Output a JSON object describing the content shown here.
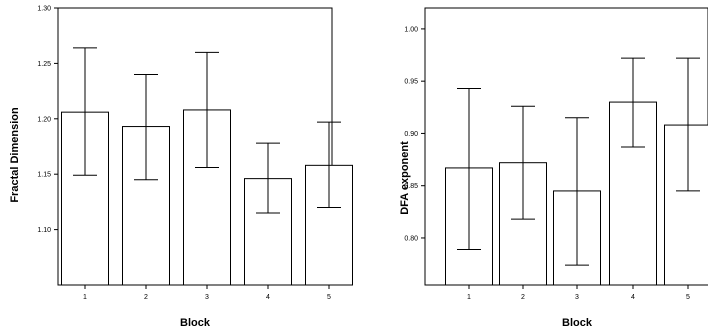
{
  "chart_data": [
    {
      "type": "bar",
      "categories": [
        "1",
        "2",
        "3",
        "4",
        "5"
      ],
      "values": [
        1.206,
        1.193,
        1.208,
        1.146,
        1.158
      ],
      "error_low": [
        1.149,
        1.145,
        1.156,
        1.115,
        1.12
      ],
      "error_high": [
        1.264,
        1.24,
        1.26,
        1.178,
        1.197
      ],
      "xlabel": "Block",
      "ylabel": "Fractal Dimension",
      "ylim": [
        1.05,
        1.3
      ],
      "yticks": [
        1.1,
        1.15,
        1.2,
        1.25,
        1.3
      ],
      "ytick_labels": [
        "1.10",
        "1.15",
        "1.20",
        "1.25",
        "1.30"
      ],
      "grid": false
    },
    {
      "type": "bar",
      "categories": [
        "1",
        "2",
        "3",
        "4",
        "5"
      ],
      "values": [
        0.867,
        0.872,
        0.845,
        0.93,
        0.908
      ],
      "error_low": [
        0.789,
        0.818,
        0.774,
        0.887,
        0.845
      ],
      "error_high": [
        0.943,
        0.926,
        0.915,
        0.972,
        0.972
      ],
      "xlabel": "Block",
      "ylabel": "DFA exponent",
      "ylim": [
        0.755,
        1.02
      ],
      "yticks": [
        0.8,
        0.85,
        0.9,
        0.95,
        1.0
      ],
      "ytick_labels": [
        "0.80",
        "0.85",
        "0.90",
        "0.95",
        "1.00"
      ],
      "grid": false
    }
  ]
}
